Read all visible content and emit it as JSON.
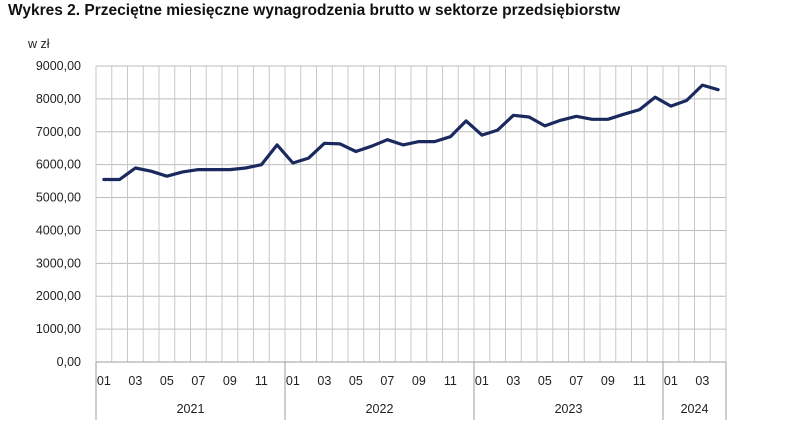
{
  "chart_data": {
    "type": "line",
    "title": "Wykres 2. Przeciętne miesięczne wynagrodzenia brutto w sektorze przedsiębiorstw",
    "unit_label": "w zł",
    "ylabel": "",
    "xlabel": "",
    "ylim": [
      0,
      9000
    ],
    "yticks": [
      0,
      1000,
      2000,
      3000,
      4000,
      5000,
      6000,
      7000,
      8000,
      9000
    ],
    "ytick_labels": [
      "0,00",
      "1000,00",
      "2000,00",
      "3000,00",
      "4000,00",
      "5000,00",
      "6000,00",
      "7000,00",
      "8000,00",
      "9000,00"
    ],
    "month_labels": [
      "01",
      "03",
      "05",
      "07",
      "09",
      "11",
      "01",
      "03",
      "05",
      "07",
      "09",
      "11",
      "01",
      "03",
      "05",
      "07",
      "09",
      "11",
      "01",
      "03"
    ],
    "month_label_index": [
      0,
      2,
      4,
      6,
      8,
      10,
      12,
      14,
      16,
      18,
      20,
      22,
      24,
      26,
      28,
      30,
      32,
      34,
      36,
      38
    ],
    "years": [
      {
        "label": "2021",
        "start": 0,
        "end": 12
      },
      {
        "label": "2022",
        "start": 12,
        "end": 24
      },
      {
        "label": "2023",
        "start": 24,
        "end": 36
      },
      {
        "label": "2024",
        "start": 36,
        "end": 40
      }
    ],
    "grid": true,
    "series": [
      {
        "color": "#1b2a5e",
        "values": [
          5550,
          5550,
          5900,
          5800,
          5650,
          5780,
          5850,
          5850,
          5850,
          5900,
          6000,
          6600,
          6050,
          6200,
          6650,
          6630,
          6400,
          6560,
          6760,
          6600,
          6700,
          6700,
          6850,
          7330,
          6900,
          7050,
          7500,
          7450,
          7180,
          7350,
          7470,
          7380,
          7380,
          7530,
          7670,
          8050,
          7780,
          7950,
          8420,
          8280
        ]
      }
    ]
  }
}
